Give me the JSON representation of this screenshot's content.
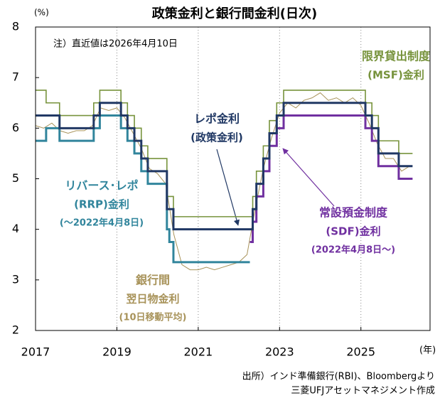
{
  "chart_data": {
    "type": "line",
    "title": "政策金利と銀行間金利(日次)",
    "y_label": "(%)",
    "x_label": "(年)",
    "note": "注）直近値は2026年4月10日",
    "source": [
      "出所）インド準備銀行(RBI)、Bloombergより",
      "三菱UFJアセットマネジメント作成"
    ],
    "xlim": [
      2017,
      2026.7
    ],
    "xticks": [
      2017,
      2019,
      2021,
      2023,
      2025
    ],
    "ylim": [
      2,
      8
    ],
    "yticks": [
      2,
      3,
      4,
      5,
      6,
      7,
      8
    ],
    "grid": true,
    "series": [
      {
        "name": "銀行間",
        "sublabel": [
          "翌日物金利",
          "(10日移動平均)"
        ],
        "color": "#a8935a",
        "step": false,
        "x": [
          2017.0,
          2017.2,
          2017.4,
          2017.6,
          2017.8,
          2018.0,
          2018.2,
          2018.4,
          2018.6,
          2018.8,
          2019.0,
          2019.2,
          2019.4,
          2019.6,
          2019.8,
          2020.0,
          2020.2,
          2020.4,
          2020.6,
          2020.8,
          2021.0,
          2021.2,
          2021.4,
          2021.6,
          2021.8,
          2022.0,
          2022.2,
          2022.4,
          2022.6,
          2022.8,
          2023.0,
          2023.2,
          2023.4,
          2023.6,
          2023.8,
          2024.0,
          2024.2,
          2024.4,
          2024.6,
          2024.8,
          2025.0,
          2025.2,
          2025.4,
          2025.6,
          2025.8,
          2026.0,
          2026.2
        ],
        "values": [
          6.05,
          6.0,
          6.1,
          5.95,
          5.9,
          5.95,
          5.95,
          6.05,
          6.4,
          6.35,
          6.4,
          6.2,
          5.9,
          5.6,
          5.2,
          5.1,
          4.9,
          3.9,
          3.3,
          3.2,
          3.2,
          3.25,
          3.2,
          3.25,
          3.3,
          3.35,
          3.5,
          4.4,
          5.2,
          5.8,
          6.3,
          6.5,
          6.4,
          6.55,
          6.6,
          6.7,
          6.55,
          6.6,
          6.5,
          6.6,
          6.45,
          6.1,
          5.7,
          5.4,
          5.4,
          5.15,
          5.25
        ]
      },
      {
        "name": "限界貸出制度",
        "sublabel": [
          "(MSF)金利"
        ],
        "color": "#77933c",
        "step": true,
        "x": [
          2017.0,
          2017.26,
          2017.59,
          2018.43,
          2018.58,
          2019.1,
          2019.26,
          2019.43,
          2019.6,
          2019.76,
          2020.23,
          2020.39,
          2022.34,
          2022.43,
          2022.6,
          2022.75,
          2022.93,
          2023.1,
          2025.11,
          2025.27,
          2025.43,
          2025.93,
          2026.27
        ],
        "values": [
          6.75,
          6.5,
          6.25,
          6.5,
          6.75,
          6.5,
          6.25,
          6.0,
          5.65,
          5.4,
          4.65,
          4.25,
          4.65,
          5.15,
          5.65,
          6.15,
          6.5,
          6.75,
          6.5,
          6.25,
          5.75,
          5.5,
          5.5
        ]
      },
      {
        "name": "リバース･レポ",
        "sublabel": [
          "(RRP)金利",
          "(～2022年4月8日)"
        ],
        "color": "#31859c",
        "step": true,
        "x": [
          2017.0,
          2017.26,
          2017.59,
          2018.43,
          2018.58,
          2019.1,
          2019.26,
          2019.43,
          2019.6,
          2019.76,
          2020.23,
          2020.29,
          2020.39,
          2022.27
        ],
        "values": [
          5.75,
          6.0,
          5.75,
          6.0,
          6.25,
          6.0,
          5.75,
          5.5,
          5.15,
          4.9,
          4.0,
          3.75,
          3.35,
          3.35
        ]
      },
      {
        "name": "常設預金制度",
        "sublabel": [
          "(SDF)金利",
          "(2022年4月8日～)"
        ],
        "color": "#7030a0",
        "step": true,
        "x": [
          2022.27,
          2022.34,
          2022.43,
          2022.6,
          2022.75,
          2022.93,
          2023.1,
          2025.11,
          2025.27,
          2025.43,
          2025.93,
          2026.27
        ],
        "values": [
          3.75,
          4.15,
          4.65,
          5.15,
          5.65,
          6.0,
          6.25,
          6.0,
          5.75,
          5.25,
          5.0,
          5.0
        ]
      },
      {
        "name": "レポ金利",
        "sublabel": [
          "(政策金利)"
        ],
        "color": "#203864",
        "step": true,
        "x": [
          2017.0,
          2017.59,
          2018.43,
          2018.58,
          2019.1,
          2019.26,
          2019.43,
          2019.6,
          2019.76,
          2020.23,
          2020.39,
          2022.34,
          2022.43,
          2022.6,
          2022.75,
          2022.93,
          2023.1,
          2025.11,
          2025.27,
          2025.43,
          2025.93,
          2026.27
        ],
        "values": [
          6.25,
          6.0,
          6.25,
          6.5,
          6.25,
          6.0,
          5.75,
          5.4,
          5.15,
          4.4,
          4.0,
          4.4,
          4.9,
          5.4,
          5.9,
          6.25,
          6.5,
          6.25,
          6.0,
          5.5,
          5.25,
          5.25
        ]
      }
    ]
  }
}
